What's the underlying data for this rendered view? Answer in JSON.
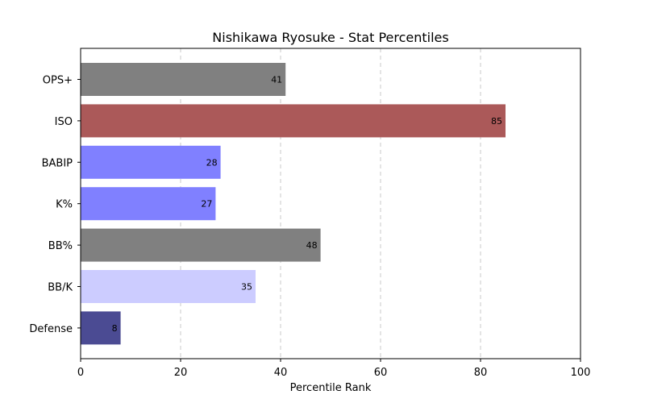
{
  "chart_data": {
    "type": "bar",
    "orientation": "horizontal",
    "title": "Nishikawa Ryosuke - Stat Percentiles",
    "xlabel": "Percentile Rank",
    "ylabel": "",
    "xlim": [
      0,
      100
    ],
    "xticks": [
      0,
      20,
      40,
      60,
      80,
      100
    ],
    "grid": "x-dashed",
    "categories": [
      "OPS+",
      "ISO",
      "BABIP",
      "K%",
      "BB%",
      "BB/K",
      "Defense"
    ],
    "values": [
      41,
      85,
      28,
      27,
      48,
      35,
      8
    ],
    "colors": [
      "#808080",
      "#ab5959",
      "#8080ff",
      "#8080ff",
      "#808080",
      "#ccccff",
      "#4b4b93"
    ]
  }
}
